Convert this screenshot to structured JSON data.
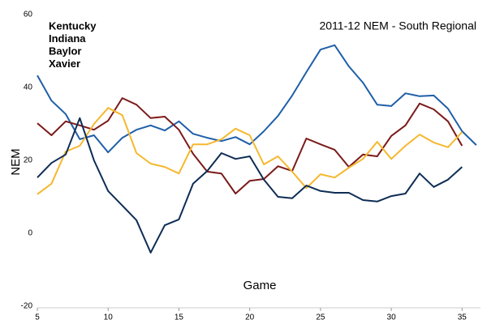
{
  "chart_data": {
    "type": "line",
    "title": "2011-12 NEM - South Regional",
    "xlabel": "Game",
    "ylabel": "NEM",
    "x": [
      5,
      6,
      7,
      8,
      9,
      10,
      11,
      12,
      13,
      14,
      15,
      16,
      17,
      18,
      19,
      20,
      21,
      22,
      23,
      24,
      25,
      26,
      27,
      28,
      29,
      30,
      31,
      32,
      33,
      34,
      35,
      36
    ],
    "series": [
      {
        "name": "Kentucky",
        "color": "#1f5fa8",
        "values": [
          43.3,
          36.4,
          32.7,
          25.8,
          26.9,
          22.2,
          26.2,
          28.4,
          29.6,
          28.2,
          30.7,
          27.3,
          26.2,
          25.3,
          26.4,
          24.4,
          28,
          32.2,
          37.8,
          44.2,
          50.4,
          51.6,
          45.8,
          41.3,
          35.3,
          34.9,
          38.4,
          37.6,
          37.8,
          34.2,
          28,
          24.2
        ]
      },
      {
        "name": "Indiana",
        "color": "#7b1a1a",
        "values": [
          30.2,
          26.9,
          30.7,
          29.6,
          28.4,
          30.9,
          37.1,
          35.3,
          31.6,
          32,
          28.4,
          21.8,
          16.9,
          16.4,
          10.9,
          14.4,
          14.9,
          18.4,
          17.1,
          26,
          24.4,
          22.9,
          18.2,
          21.6,
          21.1,
          26.7,
          29.6,
          35.6,
          34,
          30.7,
          24,
          null
        ]
      },
      {
        "name": "Baylor",
        "color": "#f5b82e",
        "values": [
          10.7,
          13.6,
          22.4,
          24,
          30,
          34.4,
          32.4,
          22,
          19.1,
          18.2,
          16.4,
          24.4,
          24.4,
          25.8,
          28.7,
          26.9,
          18.9,
          21.1,
          16.9,
          12.4,
          16.2,
          15.3,
          18,
          20.4,
          25.1,
          20.4,
          24,
          27.1,
          24.9,
          23.6,
          27.8,
          null
        ]
      },
      {
        "name": "Xavier",
        "color": "#0e2d55",
        "values": [
          15.3,
          19.3,
          21.6,
          31.6,
          20,
          11.6,
          7.6,
          3.6,
          -5.3,
          2.2,
          3.8,
          13.6,
          17.1,
          22,
          20.4,
          21.1,
          14.7,
          10,
          9.6,
          13.1,
          11.6,
          11.1,
          11.1,
          9.1,
          8.7,
          10.2,
          10.9,
          16.4,
          12.7,
          14.7,
          18.2,
          null
        ]
      }
    ],
    "xlim": [
      5,
      36.3
    ],
    "xticks": [
      5,
      10,
      15,
      20,
      25,
      30,
      35
    ],
    "ylim": [
      -20,
      60
    ],
    "yticks": [
      -20,
      0,
      20,
      40,
      60
    ],
    "grid": false,
    "legend": "upper left"
  }
}
